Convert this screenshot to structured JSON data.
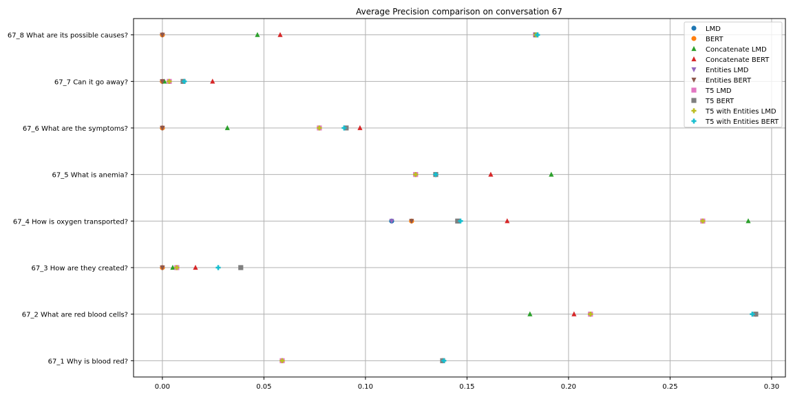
{
  "chart_data": {
    "type": "scatter",
    "title": "Average Precision comparison on conversation 67",
    "xlabel": "",
    "ylabel": "",
    "xlim": [
      -0.0142,
      0.3068
    ],
    "xticks": [
      0.0,
      0.05,
      0.1,
      0.15,
      0.2,
      0.25,
      0.3
    ],
    "xtick_labels": [
      "0.00",
      "0.05",
      "0.10",
      "0.15",
      "0.20",
      "0.25",
      "0.30"
    ],
    "grid": true,
    "legend_position": "top-right",
    "categories": [
      "67_1 Why is blood red?",
      "67_2 What are red blood cells?",
      "67_3 How are they created?",
      "67_4 How is oxygen transported?",
      "67_5 What is anemia?",
      "67_6 What are the symptoms?",
      "67_7 Can it go away?",
      "67_8 What are its possible causes?"
    ],
    "series": [
      {
        "name": "LMD",
        "marker": "circle",
        "color": "#1f77b4",
        "values": [
          0.059,
          0.2108,
          0.0,
          0.1129,
          0.1346,
          0.0,
          0.0,
          0.0
        ]
      },
      {
        "name": "BERT",
        "marker": "circle",
        "color": "#ff7f0e",
        "values": [
          0.138,
          0.2922,
          0.0,
          0.1227,
          0.1346,
          0.0,
          0.0,
          0.0
        ]
      },
      {
        "name": "Concatenate LMD",
        "marker": "triangle-up",
        "color": "#2ca02c",
        "values": [
          0.059,
          0.181,
          0.0051,
          0.2885,
          0.1915,
          0.032,
          0.001,
          0.0468
        ]
      },
      {
        "name": "Concatenate BERT",
        "marker": "triangle-up",
        "color": "#d62728",
        "values": [
          0.138,
          0.2027,
          0.0163,
          0.1698,
          0.1617,
          0.0973,
          0.0247,
          0.058
        ]
      },
      {
        "name": "Entities LMD",
        "marker": "triangle-down",
        "color": "#9467bd",
        "values": [
          0.059,
          0.2108,
          0.0,
          0.1129,
          0.1247,
          0.0,
          0.0,
          0.0
        ]
      },
      {
        "name": "Entities BERT",
        "marker": "triangle-down",
        "color": "#8c564b",
        "values": [
          0.138,
          0.2922,
          0.0,
          0.1227,
          0.1346,
          0.0,
          0.0,
          0.0
        ]
      },
      {
        "name": "T5 LMD",
        "marker": "square",
        "color": "#e377c2",
        "values": [
          0.059,
          0.2108,
          0.0071,
          0.2661,
          0.1247,
          0.0773,
          0.0034,
          0.1837
        ]
      },
      {
        "name": "T5 BERT",
        "marker": "square",
        "color": "#7f7f7f",
        "values": [
          0.138,
          0.2922,
          0.0386,
          0.1454,
          0.1346,
          0.0905,
          0.0102,
          0.184
        ]
      },
      {
        "name": "T5 with Entities LMD",
        "marker": "plus",
        "color": "#bcbd22",
        "values": [
          0.059,
          0.2108,
          0.0071,
          0.2661,
          0.1247,
          0.0773,
          0.0034,
          0.184
        ]
      },
      {
        "name": "T5 with Entities BERT",
        "marker": "plus",
        "color": "#17becf",
        "values": [
          0.1386,
          0.2905,
          0.0275,
          0.1468,
          0.1346,
          0.0895,
          0.0108,
          0.1847
        ]
      }
    ]
  }
}
